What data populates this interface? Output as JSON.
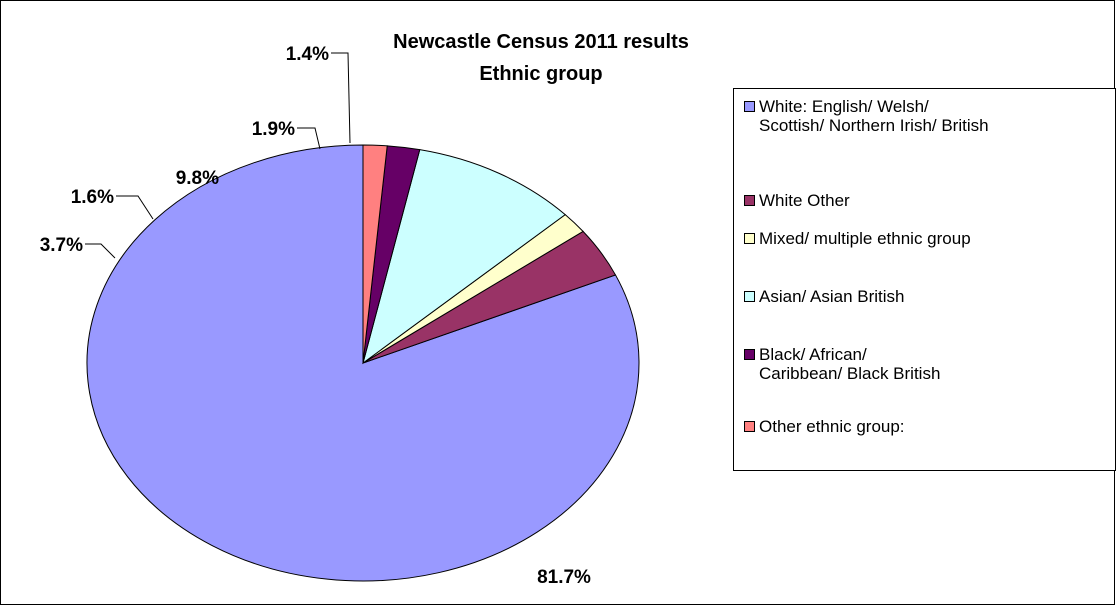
{
  "chart_data": {
    "type": "pie",
    "title": "Newcastle Census 2011 results",
    "subtitle": "Ethnic group",
    "legend_position": "right",
    "slices": [
      {
        "label": "White: English/ Welsh/ Scottish/ Northern Irish/ British",
        "legend_lines": [
          "White: English/ Welsh/",
          "Scottish/ Northern Irish/ British"
        ],
        "value": 81.7,
        "value_label": "81.7%",
        "color": "#9999ff"
      },
      {
        "label": "White Other",
        "legend_lines": [
          "White Other"
        ],
        "value": 3.7,
        "value_label": "3.7%",
        "color": "#993366"
      },
      {
        "label": "Mixed/ multiple ethnic group",
        "legend_lines": [
          "Mixed/ multiple ethnic group"
        ],
        "value": 1.6,
        "value_label": "1.6%",
        "color": "#ffffcc"
      },
      {
        "label": "Asian/ Asian British",
        "legend_lines": [
          "Asian/ Asian British"
        ],
        "value": 9.8,
        "value_label": "9.8%",
        "color": "#ccffff"
      },
      {
        "label": "Black/ African/ Caribbean/ Black British",
        "legend_lines": [
          "Black/ African/",
          "Caribbean/ Black British"
        ],
        "value": 1.9,
        "value_label": "1.9%",
        "color": "#660066"
      },
      {
        "label": "Other ethnic group:",
        "legend_lines": [
          "Other ethnic group:"
        ],
        "value": 1.4,
        "value_label": "1.4%",
        "color": "#ff8080"
      }
    ]
  }
}
